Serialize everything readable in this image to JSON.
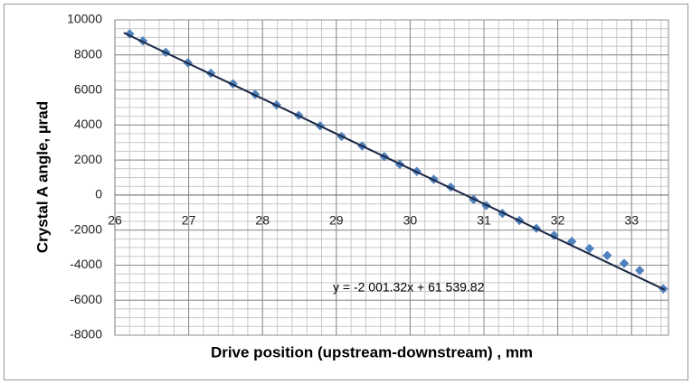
{
  "chart_data": {
    "type": "scatter",
    "x_label": "Drive position (upstream-downstream) , mm",
    "y_label": "Crystal A  angle, µrad",
    "series": [
      {
        "name": "Crystal A angle",
        "color": "#4f81bd",
        "x": [
          26.2,
          26.38,
          26.69,
          26.99,
          27.3,
          27.6,
          27.9,
          28.19,
          28.49,
          28.78,
          29.07,
          29.35,
          29.65,
          29.86,
          30.09,
          30.32,
          30.55,
          30.86,
          31.03,
          31.25,
          31.48,
          31.71,
          31.95,
          32.19,
          32.43,
          32.67,
          32.9,
          33.11,
          33.43
        ],
        "values": [
          9200,
          8800,
          8150,
          7550,
          6950,
          6350,
          5750,
          5150,
          4550,
          3950,
          3350,
          2800,
          2200,
          1750,
          1350,
          900,
          450,
          -250,
          -600,
          -1050,
          -1450,
          -1900,
          -2300,
          -2650,
          -3050,
          -3450,
          -3900,
          -4300,
          -5350
        ]
      }
    ],
    "trendline": {
      "slope": -2001.32,
      "intercept": 61539.82,
      "color": "#1a2744",
      "label": "y = -2 001.32x + 61 539.82"
    },
    "xlim": [
      26,
      33.5
    ],
    "xticks": [
      26,
      27,
      28,
      29,
      30,
      31,
      32,
      33
    ],
    "ylim": [
      -8000,
      10000
    ],
    "yticks": [
      -8000,
      -6000,
      -4000,
      -2000,
      0,
      2000,
      4000,
      6000,
      8000,
      10000
    ],
    "grid": true,
    "xminor_step": 0.2,
    "yminor_step": 500
  }
}
